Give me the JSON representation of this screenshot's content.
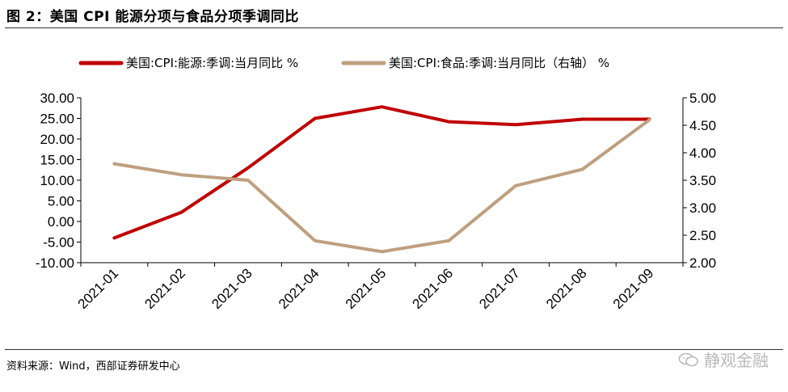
{
  "title": "图 2：美国 CPI 能源分项与食品分项季调同比",
  "source": "资料来源：Wind，西部证券研发中心",
  "watermark": "静观金融",
  "chart_data": {
    "type": "line",
    "title": "",
    "xlabel": "",
    "ylabel": "",
    "categories": [
      "2021-01",
      "2021-02",
      "2021-03",
      "2021-04",
      "2021-05",
      "2021-06",
      "2021-07",
      "2021-08",
      "2021-09"
    ],
    "left_axis": {
      "ylim": [
        -10,
        30
      ],
      "ticks": [
        "-10.00",
        "-5.00",
        "0.00",
        "5.00",
        "10.00",
        "15.00",
        "20.00",
        "25.00",
        "30.00"
      ]
    },
    "right_axis": {
      "ylim": [
        2.0,
        5.0
      ],
      "ticks": [
        "2.00",
        "2.50",
        "3.00",
        "3.50",
        "4.00",
        "4.50",
        "5.00"
      ]
    },
    "grid": false,
    "legend_position": "top",
    "series": [
      {
        "name": "美国:CPI:能源:季调:当月同比 %",
        "axis": "left",
        "color": "#c00000",
        "values": [
          -4.0,
          2.2,
          13.0,
          25.0,
          27.8,
          24.2,
          23.5,
          24.8,
          24.8
        ]
      },
      {
        "name": "美国:CPI:食品:季调:当月同比（右轴） %",
        "axis": "right",
        "color": "#bf9f7f",
        "values": [
          3.8,
          3.6,
          3.5,
          2.4,
          2.2,
          2.4,
          3.4,
          3.7,
          4.6
        ]
      }
    ]
  }
}
